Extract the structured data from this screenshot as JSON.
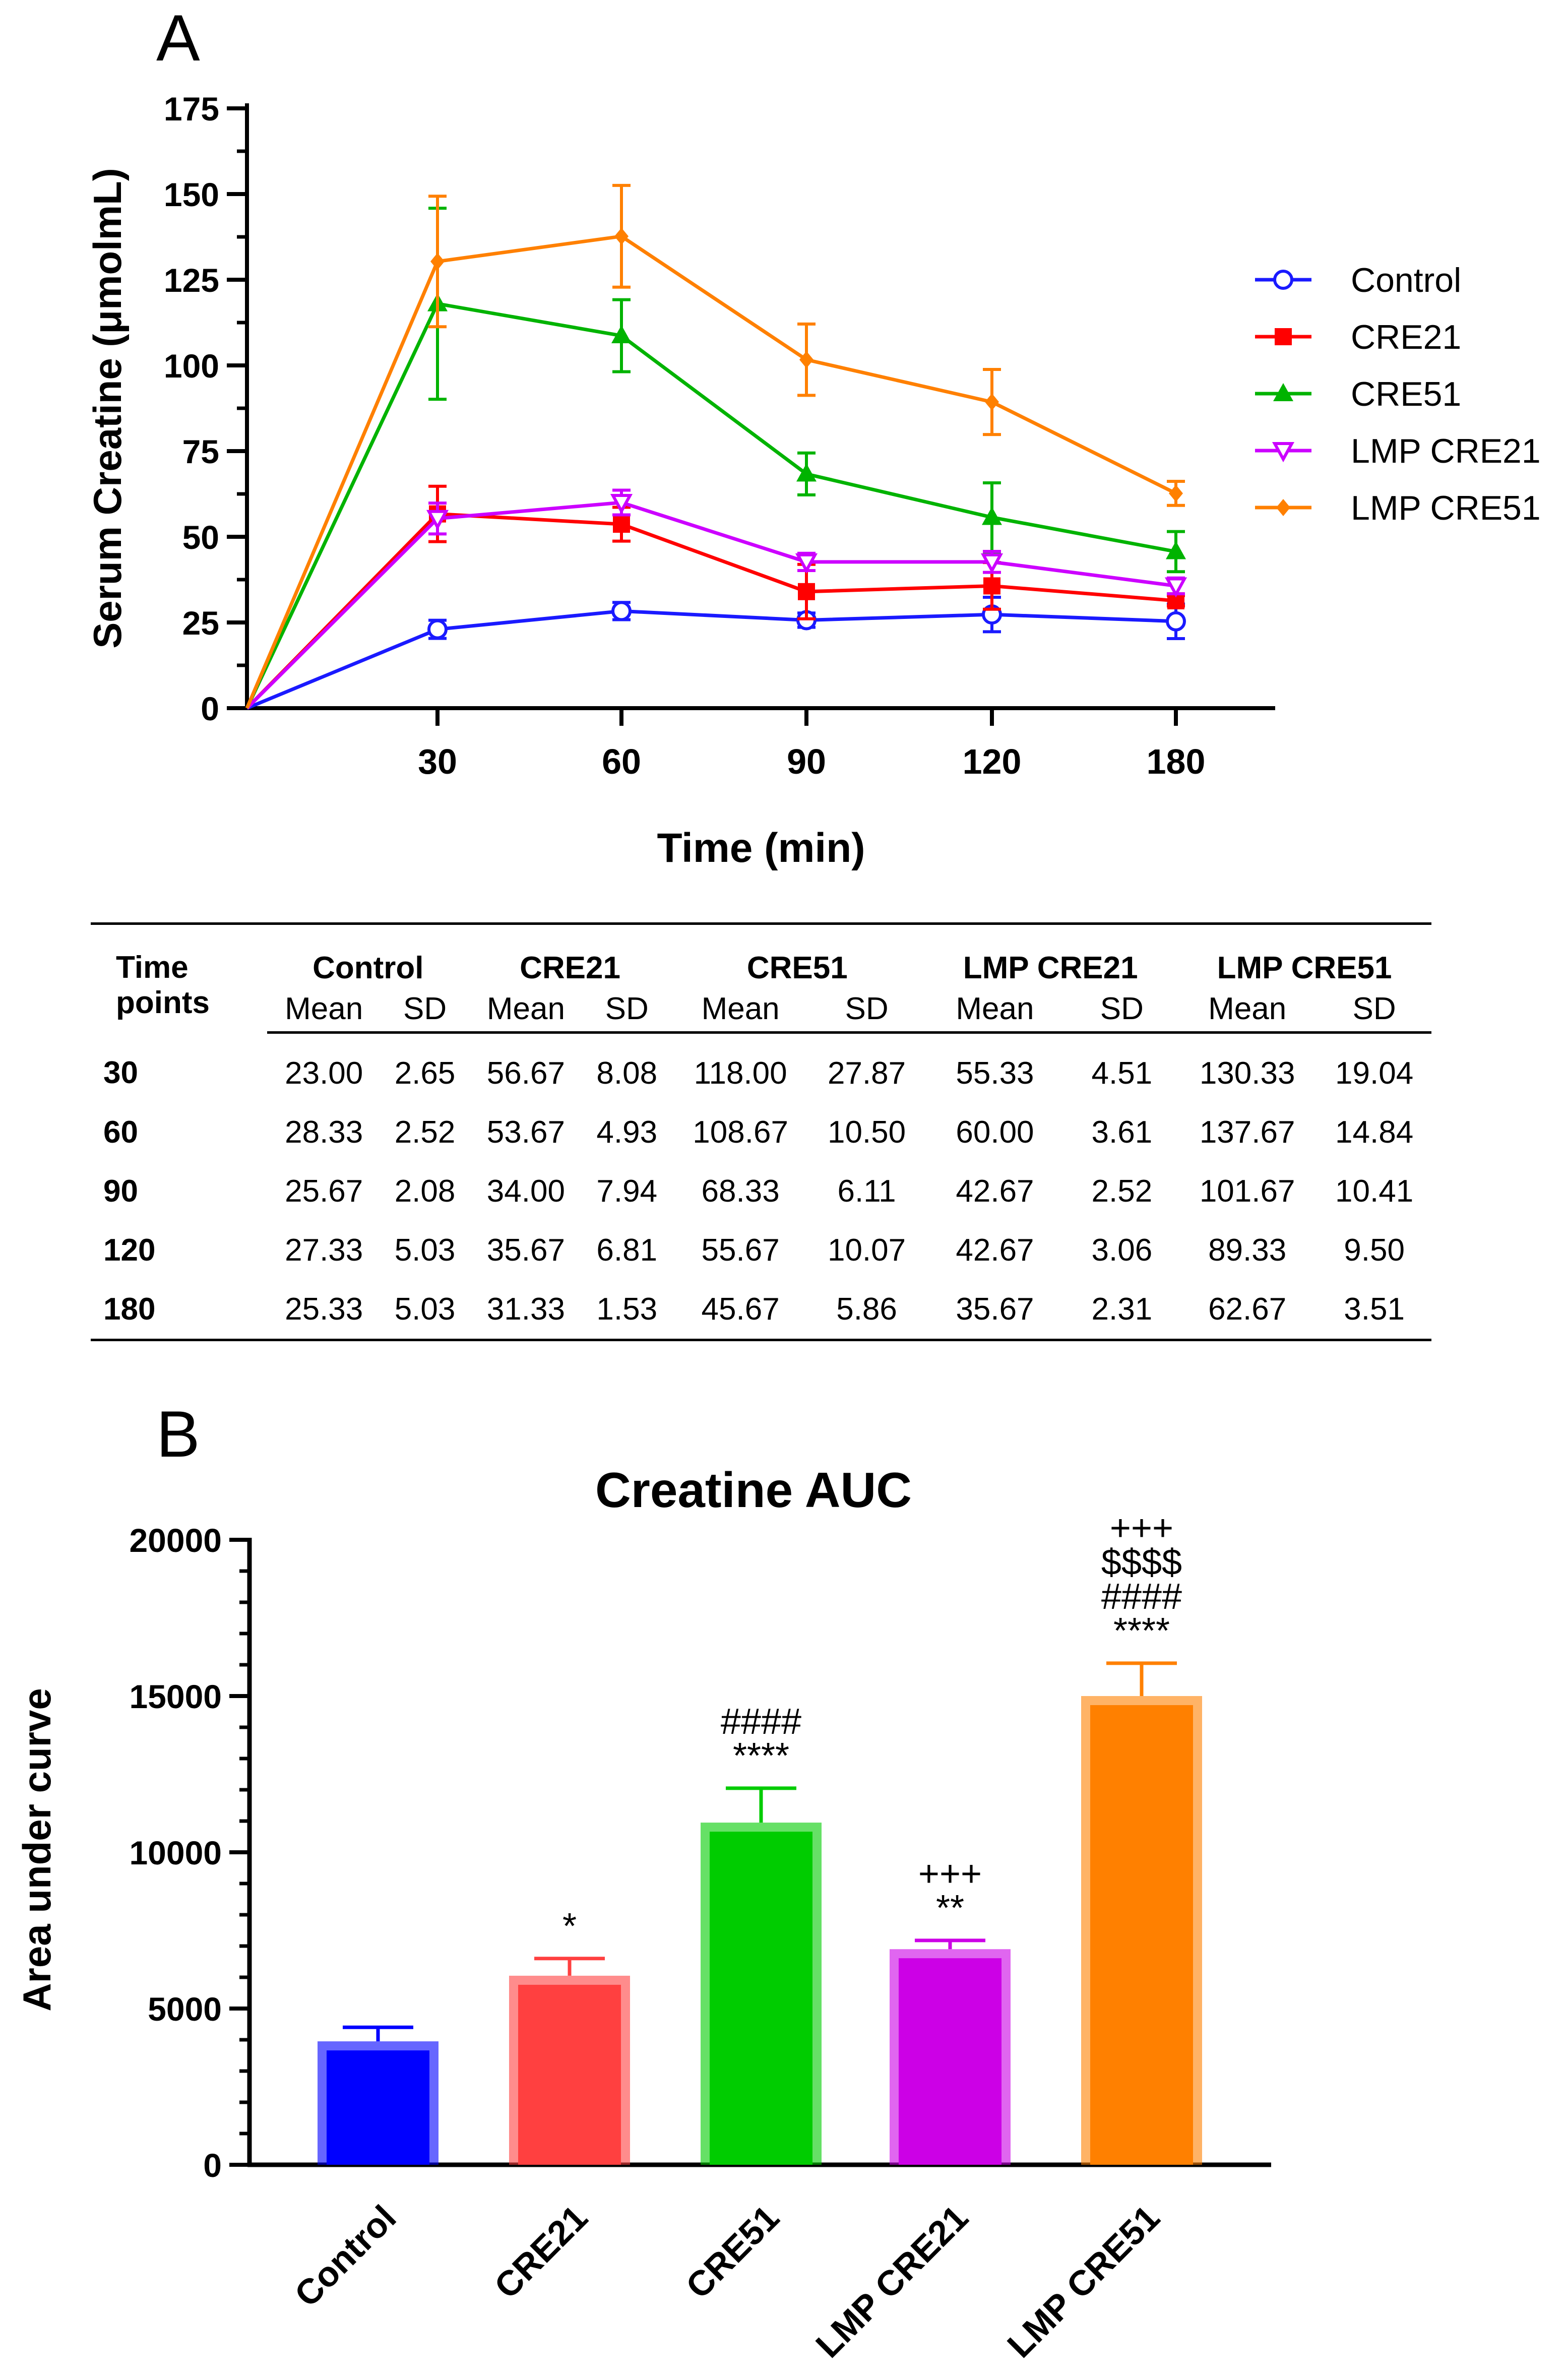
{
  "panel_labels": {
    "a": "A",
    "b": "B"
  },
  "chart_data": [
    {
      "type": "line",
      "panel": "A",
      "title": "",
      "xlabel": "Time (min)",
      "ylabel": "Serum Creatine (μmolmL)",
      "x_ticks": [
        "30",
        "60",
        "90",
        "120",
        "180"
      ],
      "y_ticks": [
        "0",
        "25",
        "50",
        "75",
        "100",
        "125",
        "150",
        "175"
      ],
      "ylim": [
        0,
        175
      ],
      "x": [
        0,
        30,
        60,
        90,
        120,
        180
      ],
      "series": [
        {
          "name": "Control",
          "color": "#1a1aff",
          "marker": "circle-open",
          "values": [
            0,
            23.0,
            28.33,
            25.67,
            27.33,
            25.33
          ],
          "sd": [
            0,
            2.65,
            2.52,
            2.08,
            5.03,
            5.03
          ]
        },
        {
          "name": "CRE21",
          "color": "#ff0000",
          "marker": "square",
          "values": [
            0,
            56.67,
            53.67,
            34.0,
            35.67,
            31.33
          ],
          "sd": [
            0,
            8.08,
            4.93,
            7.94,
            6.81,
            1.53
          ]
        },
        {
          "name": "CRE51",
          "color": "#00b300",
          "marker": "triangle",
          "values": [
            0,
            118.0,
            108.67,
            68.33,
            55.67,
            45.67
          ],
          "sd": [
            0,
            27.87,
            10.5,
            6.11,
            10.07,
            5.86
          ]
        },
        {
          "name": "LMP CRE21",
          "color": "#cc00ff",
          "marker": "triangle-down-open",
          "values": [
            0,
            55.33,
            60.0,
            42.67,
            42.67,
            35.67
          ],
          "sd": [
            0,
            4.51,
            3.61,
            2.52,
            3.06,
            2.31
          ]
        },
        {
          "name": "LMP CRE51",
          "color": "#ff8000",
          "marker": "diamond",
          "values": [
            0,
            130.33,
            137.67,
            101.67,
            89.33,
            62.67
          ],
          "sd": [
            0,
            19.04,
            14.84,
            10.41,
            9.5,
            3.51
          ]
        }
      ],
      "legend_position": "right"
    },
    {
      "type": "table",
      "header_row1": [
        "Time points",
        "Control",
        "CRE21",
        "CRE51",
        "LMP CRE21",
        "LMP CRE51"
      ],
      "sub_headers": [
        "Mean",
        "SD"
      ],
      "rows": [
        [
          "30",
          "23.00",
          "2.65",
          "56.67",
          "8.08",
          "118.00",
          "27.87",
          "55.33",
          "4.51",
          "130.33",
          "19.04"
        ],
        [
          "60",
          "28.33",
          "2.52",
          "53.67",
          "4.93",
          "108.67",
          "10.50",
          "60.00",
          "3.61",
          "137.67",
          "14.84"
        ],
        [
          "90",
          "25.67",
          "2.08",
          "34.00",
          "7.94",
          "68.33",
          "6.11",
          "42.67",
          "2.52",
          "101.67",
          "10.41"
        ],
        [
          "120",
          "27.33",
          "5.03",
          "35.67",
          "6.81",
          "55.67",
          "10.07",
          "42.67",
          "3.06",
          "89.33",
          "9.50"
        ],
        [
          "180",
          "25.33",
          "5.03",
          "31.33",
          "1.53",
          "45.67",
          "5.86",
          "35.67",
          "2.31",
          "62.67",
          "3.51"
        ]
      ]
    },
    {
      "type": "bar",
      "panel": "B",
      "title": "Creatine AUC",
      "xlabel": "",
      "ylabel": "Area under curve",
      "ylim": [
        0,
        20000
      ],
      "y_ticks": [
        "0",
        "5000",
        "10000",
        "15000",
        "20000"
      ],
      "categories": [
        "Control",
        "CRE21",
        "CRE51",
        "LMP CRE21",
        "LMP CRE51"
      ],
      "values": [
        3950,
        6050,
        10950,
        6900,
        15000
      ],
      "errors": [
        450,
        550,
        1100,
        280,
        1050
      ],
      "colors": [
        "#0000ff",
        "#ff4040",
        "#00cc00",
        "#cc00e6",
        "#ff8000"
      ],
      "annotations": [
        [],
        [
          "*"
        ],
        [
          "####",
          "****"
        ],
        [
          "+++",
          "**"
        ],
        [
          "+++",
          "$$$$",
          "####",
          "****"
        ]
      ]
    }
  ]
}
